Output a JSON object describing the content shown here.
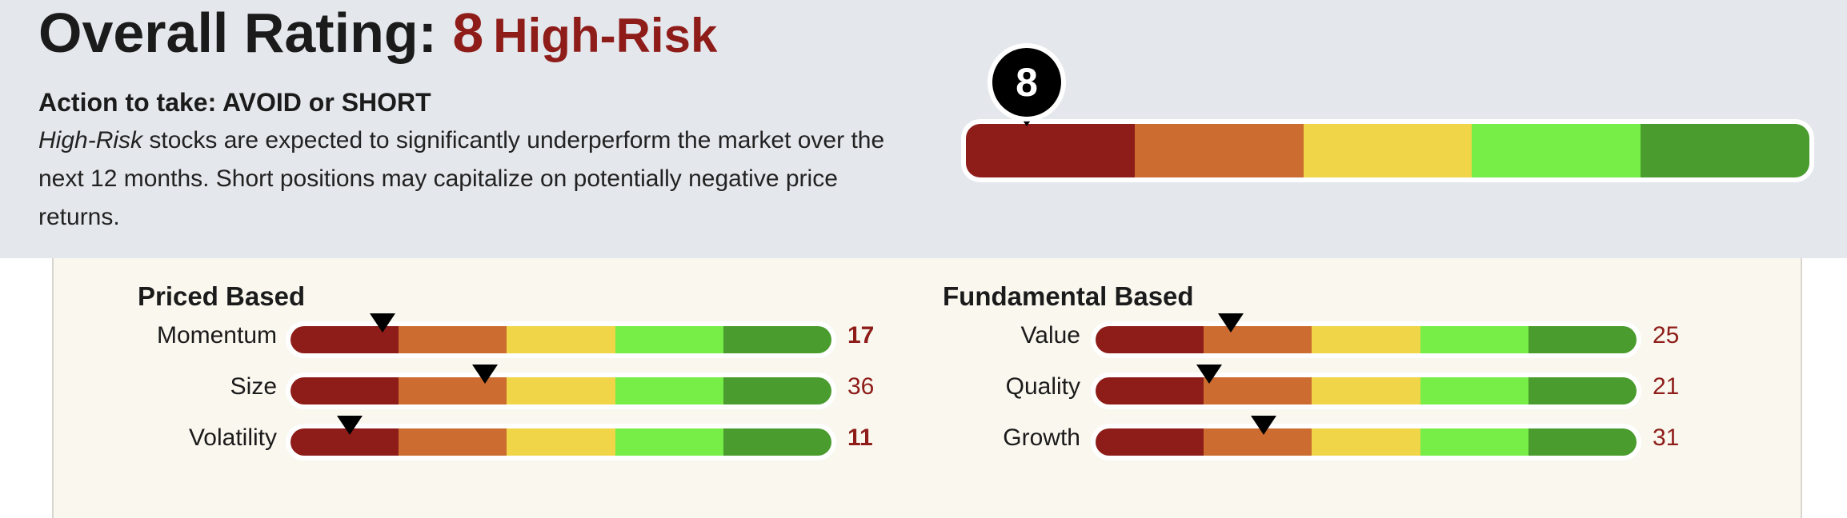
{
  "header": {
    "title_prefix": "Overall Rating:",
    "rating_value": "8",
    "rating_label": "High-Risk",
    "action": "Action to take: AVOID or SHORT",
    "description_em": "High-Risk",
    "description_rest": " stocks are expected to significantly underperform the market over the next 12 months. Short positions may capitalize on potentially negative price returns."
  },
  "main_gauge": {
    "pin_value": "8",
    "colors": [
      "#8e1d1a",
      "#cc6c30",
      "#f0d548",
      "#77ed47",
      "#4a9c2e"
    ]
  },
  "groups": [
    {
      "title": "Priced Based",
      "factors": [
        {
          "label": "Momentum",
          "score": "17",
          "level": 17
        },
        {
          "label": "Size",
          "score": "36",
          "level": 36
        },
        {
          "label": "Volatility",
          "score": "11",
          "level": 11
        }
      ]
    },
    {
      "title": "Fundamental Based",
      "factors": [
        {
          "label": "Value",
          "score": "25",
          "level": 25
        },
        {
          "label": "Quality",
          "score": "21",
          "level": 21
        },
        {
          "label": "Growth",
          "score": "31",
          "level": 31
        }
      ]
    }
  ]
}
